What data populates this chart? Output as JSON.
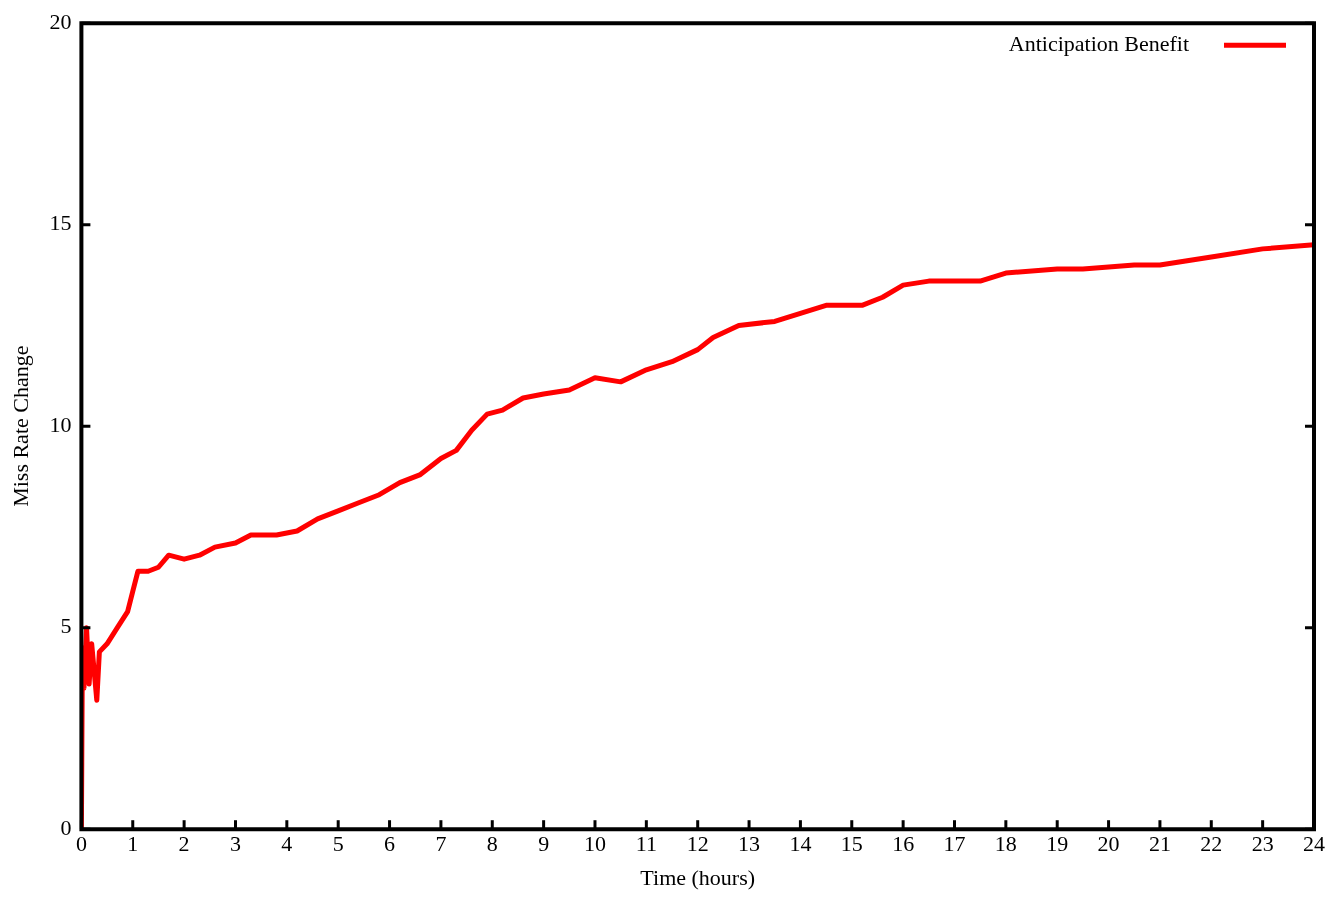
{
  "chart_data": {
    "type": "line",
    "xlabel": "Time (hours)",
    "ylabel": "Miss Rate Change",
    "xlim": [
      0,
      24
    ],
    "xticks": [
      0,
      1,
      2,
      3,
      4,
      5,
      6,
      7,
      8,
      9,
      10,
      11,
      12,
      13,
      14,
      15,
      16,
      17,
      18,
      19,
      20,
      21,
      22,
      23,
      24
    ],
    "ylim": [
      0,
      20
    ],
    "yticks": [
      0,
      5,
      10,
      15,
      20
    ],
    "grid": false,
    "legend": "top right",
    "marker": "none",
    "line_style": "solid",
    "series": [
      {
        "name": "Anticipation Benefit",
        "color": "#ff0000",
        "x": [
          0,
          0.02,
          0.05,
          0.1,
          0.15,
          0.2,
          0.3,
          0.35,
          0.5,
          0.7,
          0.9,
          1.0,
          1.1,
          1.3,
          1.5,
          1.7,
          2.0,
          2.3,
          2.6,
          3.0,
          3.3,
          3.8,
          4.2,
          4.6,
          5.0,
          5.4,
          5.8,
          6.2,
          6.6,
          7.0,
          7.3,
          7.6,
          7.9,
          8.2,
          8.6,
          9.0,
          9.5,
          10.0,
          10.5,
          11.0,
          11.5,
          12.0,
          12.3,
          12.8,
          13.5,
          14.0,
          14.5,
          15.2,
          15.6,
          16.0,
          16.5,
          17.5,
          18.0,
          19.0,
          19.5,
          20.5,
          21.0,
          21.5,
          22.0,
          23.0,
          24.0
        ],
        "values": [
          0,
          4.5,
          3.5,
          5.0,
          3.6,
          4.6,
          3.2,
          4.4,
          4.6,
          5.0,
          5.4,
          5.9,
          6.4,
          6.4,
          6.5,
          6.8,
          6.7,
          6.8,
          7.0,
          7.1,
          7.3,
          7.3,
          7.4,
          7.7,
          7.9,
          8.1,
          8.3,
          8.6,
          8.8,
          9.2,
          9.4,
          9.9,
          10.3,
          10.4,
          10.7,
          10.8,
          10.9,
          11.2,
          11.1,
          11.4,
          11.6,
          11.9,
          12.2,
          12.5,
          12.6,
          12.8,
          13.0,
          13.0,
          13.2,
          13.5,
          13.6,
          13.6,
          13.8,
          13.9,
          13.9,
          14.0,
          14.0,
          14.1,
          14.2,
          14.4,
          14.5
        ]
      }
    ]
  }
}
